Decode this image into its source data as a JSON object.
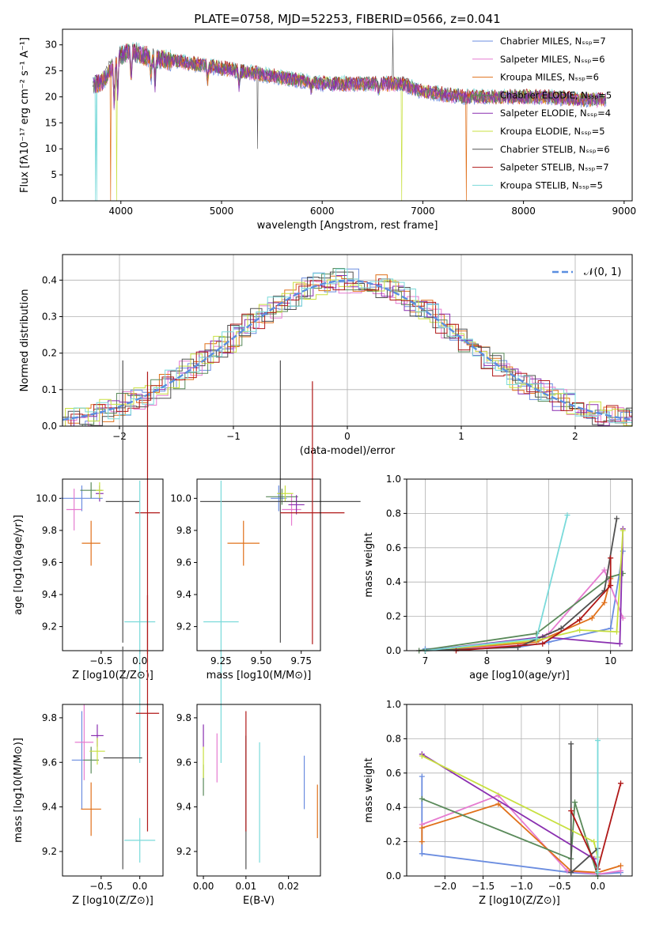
{
  "title": "PLATE=0758, MJD=52253, FIBERID=0566, z=0.041",
  "colors": [
    "#6b8de0",
    "#e67bd0",
    "#e0701a",
    "#5a8a5a",
    "#8a2fb0",
    "#c8e040",
    "#505050",
    "#b01818",
    "#7adada"
  ],
  "chart_data": [
    {
      "type": "line",
      "panel": "spectrum",
      "xlabel": "wavelength [Angstrom, rest frame]",
      "ylabel": "Flux [fλ10⁻¹⁷ erg cm⁻² s⁻¹ A⁻¹]",
      "xlim": [
        3420,
        9080
      ],
      "ylim": [
        0,
        33
      ],
      "xticks": [
        4000,
        5000,
        6000,
        7000,
        8000,
        9000
      ],
      "yticks": [
        0,
        5,
        10,
        15,
        20,
        25,
        30
      ],
      "legend_position": "top-right",
      "series": [
        {
          "name": "Chabrier MILES, N_SSP=7"
        },
        {
          "name": "Salpeter MILES, N_SSP=6"
        },
        {
          "name": "Kroupa MILES, N_SSP=6"
        },
        {
          "name": "Chabrier ELODIE, N_SSP=5"
        },
        {
          "name": "Salpeter ELODIE, N_SSP=4"
        },
        {
          "name": "Kroupa ELODIE, N_SSP=5"
        },
        {
          "name": "Chabrier STELIB, N_SSP=6"
        },
        {
          "name": "Salpeter STELIB, N_SSP=7"
        },
        {
          "name": "Kroupa STELIB, N_SSP=5"
        }
      ],
      "continuum": {
        "x": [
          3720,
          3800,
          3900,
          4000,
          4100,
          4300,
          4500,
          5000,
          5500,
          6000,
          6500,
          6800,
          7000,
          7400,
          7800,
          8200,
          8600,
          8820
        ],
        "y": [
          22.5,
          22.5,
          25.5,
          28,
          28.8,
          27.5,
          27,
          25.5,
          24,
          22.5,
          22.5,
          22.5,
          21,
          20,
          20,
          20,
          19.5,
          19.5
        ]
      }
    },
    {
      "type": "histogram",
      "panel": "residuals",
      "xlabel": "(data-model)/error",
      "ylabel": "Normed distribution",
      "xlim": [
        -2.5,
        2.5
      ],
      "ylim": [
        0,
        0.47
      ],
      "xticks": [
        -2,
        -1,
        0,
        1,
        2
      ],
      "yticks": [
        0.0,
        0.1,
        0.2,
        0.3,
        0.4
      ],
      "legend": "𝒩(0, 1)",
      "legend_position": "top-right",
      "grid": true
    },
    {
      "type": "scatter",
      "panel": "age-vs-Z",
      "xlabel": "Z [log10(Z/Z⊙)]",
      "ylabel": "age  [log10(age/yr)]",
      "xlim": [
        -1.0,
        0.3
      ],
      "ylim": [
        9.05,
        10.12
      ],
      "xticks": [
        -0.5,
        0.0
      ],
      "yticks": [
        9.2,
        9.4,
        9.6,
        9.8,
        10.0
      ],
      "points": [
        {
          "x": -0.75,
          "y": 10.0,
          "xerr": 0.27,
          "yerr": 0.08
        },
        {
          "x": -0.85,
          "y": 9.93,
          "xerr": 0.1,
          "yerr": 0.13
        },
        {
          "x": -0.63,
          "y": 9.72,
          "xerr": 0.12,
          "yerr": 0.14
        },
        {
          "x": -0.63,
          "y": 10.05,
          "xerr": 0.14,
          "yerr": 0.05
        },
        {
          "x": -0.52,
          "y": 10.03,
          "xerr": 0.05,
          "yerr": 0.05
        },
        {
          "x": -0.52,
          "y": 10.05,
          "xerr": 0.05,
          "yerr": 0.05
        },
        {
          "x": -0.22,
          "y": 9.98,
          "xerr": 0.22,
          "yerr": 0.88
        },
        {
          "x": 0.1,
          "y": 9.91,
          "xerr": 0.16,
          "yerr": 0.88
        },
        {
          "x": 0.0,
          "y": 9.23,
          "xerr": 0.2,
          "yerr": 0.88
        }
      ]
    },
    {
      "type": "scatter",
      "panel": "age-vs-mass",
      "xlabel": "mass [log10(M/M⊙)]",
      "ylabel": "",
      "xlim": [
        9.1,
        9.87
      ],
      "ylim": [
        9.05,
        10.12
      ],
      "xticks": [
        9.25,
        9.5,
        9.75
      ],
      "yticks": [
        9.2,
        9.4,
        9.6,
        9.8,
        10.0
      ],
      "points": [
        {
          "x": 9.61,
          "y": 10.0,
          "xerr": 0.05,
          "yerr": 0.08
        },
        {
          "x": 9.69,
          "y": 9.93,
          "xerr": 0.06,
          "yerr": 0.1
        },
        {
          "x": 9.39,
          "y": 9.72,
          "xerr": 0.1,
          "yerr": 0.14
        },
        {
          "x": 9.63,
          "y": 10.01,
          "xerr": 0.1,
          "yerr": 0.05
        },
        {
          "x": 9.72,
          "y": 9.96,
          "xerr": 0.05,
          "yerr": 0.06
        },
        {
          "x": 9.65,
          "y": 10.03,
          "xerr": 0.05,
          "yerr": 0.05
        },
        {
          "x": 9.62,
          "y": 9.98,
          "xerr": 0.5,
          "yerr": 0.88
        },
        {
          "x": 9.82,
          "y": 9.91,
          "xerr": 0.2,
          "yerr": 0.82
        },
        {
          "x": 9.25,
          "y": 9.23,
          "xerr": 0.11,
          "yerr": 0.88
        }
      ]
    },
    {
      "type": "line",
      "panel": "mass-weight-vs-age",
      "xlabel": "age  [log10(age/yr)]",
      "ylabel": "mass weight",
      "xlim": [
        6.7,
        10.35
      ],
      "ylim": [
        0,
        1.0
      ],
      "xticks": [
        7,
        8,
        9,
        10
      ],
      "yticks": [
        0.0,
        0.2,
        0.4,
        0.6,
        0.8,
        1.0
      ],
      "grid": true,
      "series": [
        {
          "x": [
            7.0,
            8.5,
            9.0,
            10.0,
            10.2
          ],
          "y": [
            0.01,
            0.02,
            0.05,
            0.13,
            0.58
          ]
        },
        {
          "x": [
            6.9,
            8.5,
            9.0,
            9.9,
            10.2
          ],
          "y": [
            0.0,
            0.03,
            0.1,
            0.47,
            0.19
          ]
        },
        {
          "x": [
            7.0,
            8.8,
            9.7,
            9.9,
            10.0
          ],
          "y": [
            0.0,
            0.05,
            0.19,
            0.28,
            0.42
          ]
        },
        {
          "x": [
            6.9,
            8.8,
            10.0,
            10.2
          ],
          "y": [
            0.0,
            0.1,
            0.43,
            0.45
          ]
        },
        {
          "x": [
            7.0,
            8.9,
            10.15,
            10.2
          ],
          "y": [
            0.0,
            0.08,
            0.04,
            0.71
          ]
        },
        {
          "x": [
            7.0,
            8.8,
            9.5,
            10.1,
            10.2
          ],
          "y": [
            0.0,
            0.06,
            0.12,
            0.11,
            0.7
          ]
        },
        {
          "x": [
            7.0,
            8.5,
            9.2,
            9.9,
            10.1
          ],
          "y": [
            0.0,
            0.02,
            0.13,
            0.35,
            0.77
          ]
        },
        {
          "x": [
            7.5,
            8.9,
            9.5,
            10.0,
            10.0
          ],
          "y": [
            0.0,
            0.04,
            0.18,
            0.38,
            0.54
          ]
        },
        {
          "x": [
            7.0,
            8.8,
            9.3
          ],
          "y": [
            0.0,
            0.07,
            0.79
          ]
        }
      ]
    },
    {
      "type": "scatter",
      "panel": "mass-vs-Z",
      "xlabel": "Z [log10(Z/Z⊙)]",
      "ylabel": "mass [log10(M/M⊙)]",
      "xlim": [
        -1.0,
        0.3
      ],
      "ylim": [
        9.09,
        9.86
      ],
      "xticks": [
        -0.5,
        0.0
      ],
      "yticks": [
        9.2,
        9.4,
        9.6,
        9.8
      ],
      "points": [
        {
          "x": -0.75,
          "y": 9.61,
          "xerr": 0.13,
          "yerr": 0.22
        },
        {
          "x": -0.72,
          "y": 9.69,
          "xerr": 0.12,
          "yerr": 0.17
        },
        {
          "x": -0.63,
          "y": 9.39,
          "xerr": 0.13,
          "yerr": 0.12
        },
        {
          "x": -0.63,
          "y": 9.61,
          "xerr": 0.1,
          "yerr": 0.06
        },
        {
          "x": -0.55,
          "y": 9.72,
          "xerr": 0.08,
          "yerr": 0.05
        },
        {
          "x": -0.55,
          "y": 9.65,
          "xerr": 0.1,
          "yerr": 0.06
        },
        {
          "x": -0.22,
          "y": 9.62,
          "xerr": 0.25,
          "yerr": 0.5
        },
        {
          "x": 0.1,
          "y": 9.82,
          "xerr": 0.15,
          "yerr": 0.53
        },
        {
          "x": 0.0,
          "y": 9.25,
          "xerr": 0.2,
          "yerr": 0.1
        }
      ]
    },
    {
      "type": "scatter",
      "panel": "mass-vs-ebv",
      "xlabel": "E(B-V)",
      "ylabel": "",
      "xlim": [
        -0.0015,
        0.0275
      ],
      "ylim": [
        9.09,
        9.86
      ],
      "xticks": [
        0.0,
        0.01,
        0.02
      ],
      "yticks": [
        9.2,
        9.4,
        9.6,
        9.8
      ],
      "points": [
        {
          "x": 0.0237,
          "y": 9.51,
          "yerr": 0.12
        },
        {
          "x": 0.0032,
          "y": 9.62,
          "yerr": 0.11
        },
        {
          "x": 0.0268,
          "y": 9.38,
          "yerr": 0.12
        },
        {
          "x": 0.0,
          "y": 9.52,
          "yerr": 0.07
        },
        {
          "x": 0.0,
          "y": 9.72,
          "yerr": 0.05
        },
        {
          "x": 0.0,
          "y": 9.6,
          "yerr": 0.07
        },
        {
          "x": 0.01,
          "y": 9.42,
          "yerr": 0.3
        },
        {
          "x": 0.01,
          "y": 9.56,
          "yerr": 0.27
        },
        {
          "x": 0.0132,
          "y": 9.42,
          "yerr": 0.27
        }
      ]
    },
    {
      "type": "line",
      "panel": "mass-weight-vs-Z",
      "xlabel": "Z [log10(Z/Z⊙)]",
      "ylabel": "mass weight",
      "xlim": [
        -2.5,
        0.45
      ],
      "ylim": [
        0,
        1.0
      ],
      "xticks": [
        -2.0,
        -1.5,
        -1.0,
        -0.5,
        0.0
      ],
      "yticks": [
        0.0,
        0.2,
        0.4,
        0.6,
        0.8,
        1.0
      ],
      "grid": true,
      "series": [
        {
          "x": [
            -2.3,
            -2.3,
            -0.35,
            0.0,
            0.3
          ],
          "y": [
            0.58,
            0.13,
            0.02,
            0.01,
            0.02
          ]
        },
        {
          "x": [
            -2.3,
            -1.3,
            -0.4,
            0.0,
            0.3
          ],
          "y": [
            0.3,
            0.47,
            0.03,
            0.01,
            0.03
          ]
        },
        {
          "x": [
            -2.3,
            -2.3,
            -1.3,
            -0.35,
            0.0,
            0.3
          ],
          "y": [
            0.2,
            0.28,
            0.42,
            0.03,
            0.02,
            0.06
          ]
        },
        {
          "x": [
            -2.3,
            -0.35,
            -0.3,
            0.0
          ],
          "y": [
            0.45,
            0.1,
            0.43,
            0.0
          ]
        },
        {
          "x": [
            -2.3,
            -0.05,
            0.0
          ],
          "y": [
            0.71,
            0.1,
            0.04
          ]
        },
        {
          "x": [
            -2.3,
            -0.05,
            0.0
          ],
          "y": [
            0.7,
            0.2,
            0.11
          ]
        },
        {
          "x": [
            -0.35,
            -0.35,
            0.0
          ],
          "y": [
            0.77,
            0.02,
            0.16
          ]
        },
        {
          "x": [
            -0.35,
            0.0,
            0.3
          ],
          "y": [
            0.38,
            0.04,
            0.54
          ]
        },
        {
          "x": [
            0.0,
            0.0
          ],
          "y": [
            0.02,
            0.79
          ]
        }
      ]
    }
  ]
}
